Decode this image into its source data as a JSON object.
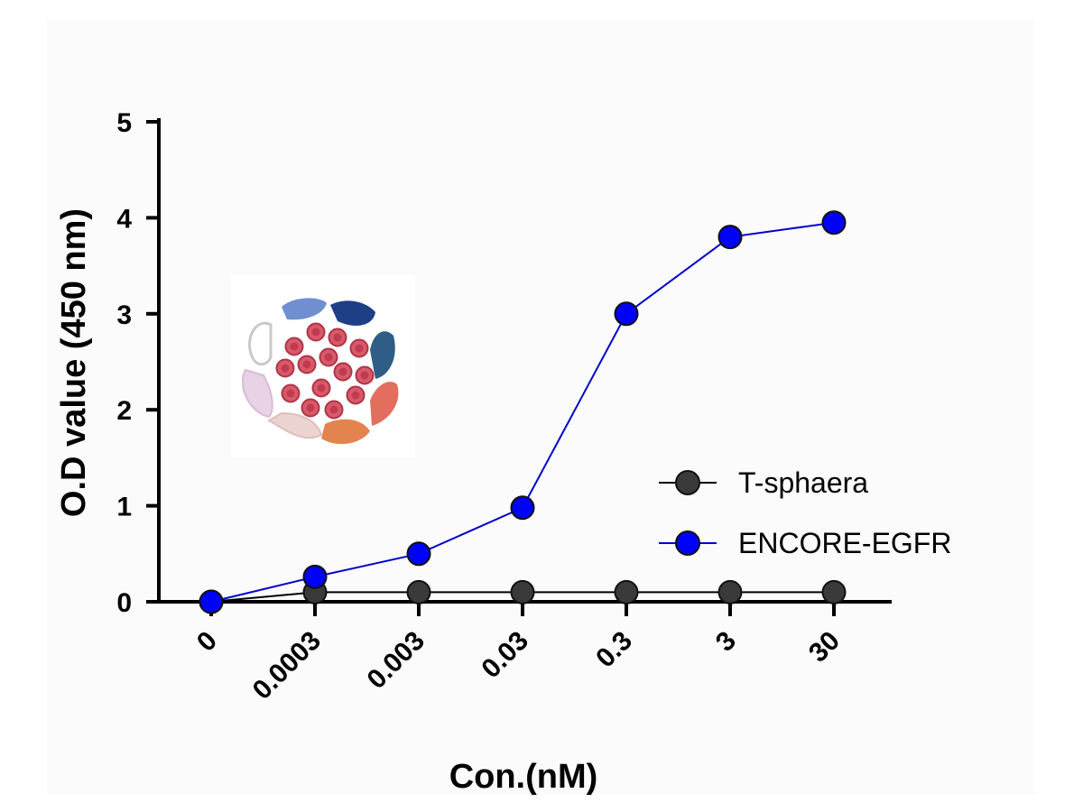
{
  "chart_data": {
    "type": "line",
    "categories": [
      "0",
      "0.0003",
      "0.003",
      "0.03",
      "0.3",
      "3",
      "30"
    ],
    "xlabel": "Con.(nM)",
    "ylabel": "O.D value (450 nm)",
    "ylim": [
      0,
      5
    ],
    "yticks": [
      0,
      1,
      2,
      3,
      4,
      5
    ],
    "grid": false,
    "legend_position": "right",
    "series": [
      {
        "name": "T-sphaera",
        "color": "#3a3a3a",
        "line_color": "#000000",
        "values": [
          0.0,
          0.1,
          0.1,
          0.1,
          0.1,
          0.1,
          0.1
        ]
      },
      {
        "name": "ENCORE-EGFR",
        "color": "#0000ff",
        "line_color": "#0000cc",
        "values": [
          0.0,
          0.26,
          0.5,
          0.98,
          3.0,
          3.8,
          3.95
        ]
      }
    ],
    "inset_icon": "nanoparticle-cluster-icon"
  }
}
